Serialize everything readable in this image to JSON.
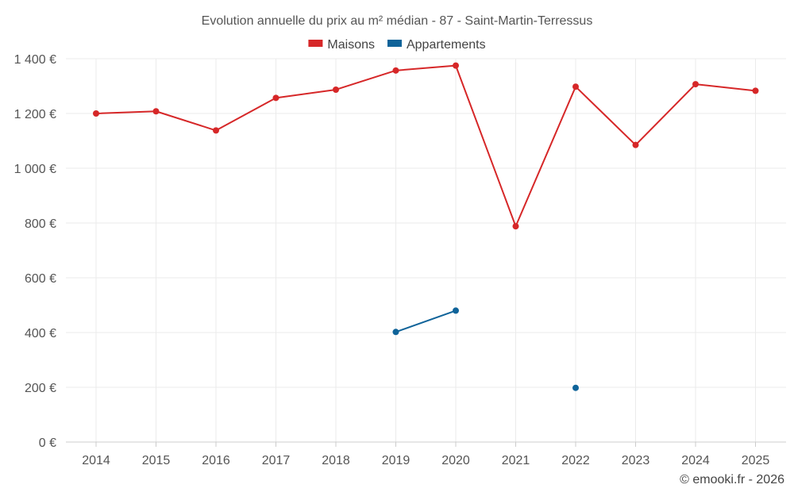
{
  "chart_data": {
    "type": "line",
    "title": "Evolution annuelle du prix au m² médian - 87 - Saint-Martin-Terressus",
    "categories": [
      "2014",
      "2015",
      "2016",
      "2017",
      "2018",
      "2019",
      "2020",
      "2021",
      "2022",
      "2023",
      "2024",
      "2025"
    ],
    "y_tick_labels": [
      "0 €",
      "200 €",
      "400 €",
      "600 €",
      "800 €",
      "1 000 €",
      "1 200 €",
      "1 400 €"
    ],
    "y_ticks": [
      0,
      200,
      400,
      600,
      800,
      1000,
      1200,
      1400
    ],
    "ylim": [
      0,
      1400
    ],
    "grid": true,
    "legend_position": "top-center",
    "series": [
      {
        "name": "Maisons",
        "color": "#d62728",
        "values": [
          1200,
          1208,
          1138,
          1257,
          1287,
          1357,
          1375,
          788,
          1298,
          1085,
          1307,
          1283
        ]
      },
      {
        "name": "Appartements",
        "color": "#0f6399",
        "values": [
          null,
          null,
          null,
          null,
          null,
          402,
          480,
          null,
          198,
          null,
          null,
          null
        ]
      }
    ],
    "credit": "© emooki.fr - 2026"
  }
}
